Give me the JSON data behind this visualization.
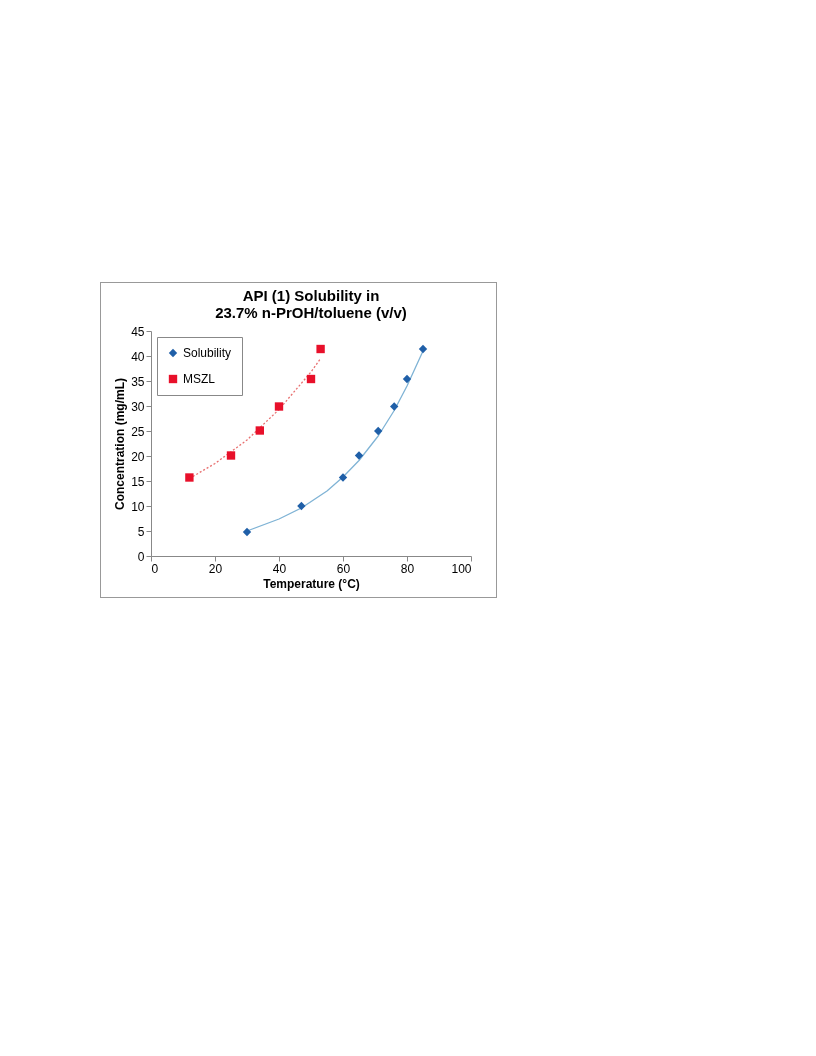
{
  "chart_data": {
    "type": "scatter",
    "title": "API (1) Solubility in\n23.7% n-PrOH/toluene (v/v)",
    "xlabel": "Temperature (°C)",
    "ylabel": "Concentration (mg/mL)",
    "xlim": [
      0,
      100
    ],
    "xticks": [
      0,
      20,
      40,
      60,
      80,
      100
    ],
    "ylim": [
      0,
      45
    ],
    "yticks": [
      0,
      5,
      10,
      15,
      20,
      25,
      30,
      35,
      40,
      45
    ],
    "grid": false,
    "legend": "top left",
    "series": [
      {
        "name": "Solubility",
        "type": "scatter",
        "marker": "diamond",
        "color": "#1f5fa8",
        "x": [
          30,
          47,
          60,
          65,
          71,
          76,
          80,
          85
        ],
        "values": [
          4.8,
          10,
          15.7,
          20.1,
          25,
          29.9,
          35.4,
          41.4
        ]
      },
      {
        "name": "MSZL",
        "type": "scatter",
        "marker": "square",
        "color": "#e8102a",
        "x": [
          12,
          25,
          34,
          40,
          50,
          53
        ],
        "values": [
          15.7,
          20.1,
          25.1,
          29.9,
          35.4,
          41.4
        ]
      },
      {
        "type": "line",
        "color": "#7fb3d5",
        "line_style": "solid",
        "x": [
          30,
          40,
          47,
          55,
          60,
          65,
          71,
          76,
          80,
          85
        ],
        "values": [
          5.0,
          7.4,
          9.6,
          13.0,
          15.8,
          19.1,
          24.0,
          29.1,
          34.0,
          41.0
        ]
      },
      {
        "type": "line",
        "color": "#e87070",
        "line_style": "dotted",
        "x": [
          12,
          20,
          30,
          40,
          50,
          53
        ],
        "values": [
          15.5,
          18.5,
          23.2,
          29.3,
          36.8,
          39.5
        ]
      }
    ]
  }
}
